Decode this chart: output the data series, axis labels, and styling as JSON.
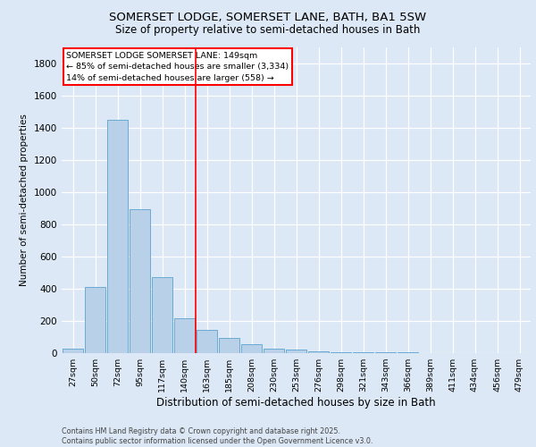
{
  "title_line1": "SOMERSET LODGE, SOMERSET LANE, BATH, BA1 5SW",
  "title_line2": "Size of property relative to semi-detached houses in Bath",
  "xlabel": "Distribution of semi-detached houses by size in Bath",
  "ylabel": "Number of semi-detached properties",
  "categories": [
    "27sqm",
    "50sqm",
    "72sqm",
    "95sqm",
    "117sqm",
    "140sqm",
    "163sqm",
    "185sqm",
    "208sqm",
    "230sqm",
    "253sqm",
    "276sqm",
    "298sqm",
    "321sqm",
    "343sqm",
    "366sqm",
    "389sqm",
    "411sqm",
    "434sqm",
    "456sqm",
    "479sqm"
  ],
  "values": [
    25,
    410,
    1450,
    895,
    470,
    215,
    145,
    95,
    55,
    28,
    20,
    12,
    8,
    6,
    5,
    3,
    2,
    2,
    1,
    1,
    1
  ],
  "bar_color": "#b8d0e8",
  "bar_edge_color": "#6aaad4",
  "vline_x": 5.5,
  "vline_color": "red",
  "annotation_title": "SOMERSET LODGE SOMERSET LANE: 149sqm",
  "annotation_line2": "← 85% of semi-detached houses are smaller (3,334)",
  "annotation_line3": "14% of semi-detached houses are larger (558) →",
  "ylim": [
    0,
    1900
  ],
  "yticks": [
    0,
    200,
    400,
    600,
    800,
    1000,
    1200,
    1400,
    1600,
    1800
  ],
  "footer": "Contains HM Land Registry data © Crown copyright and database right 2025.\nContains public sector information licensed under the Open Government Licence v3.0.",
  "bg_color": "#dce8f5",
  "fig_bg_color": "#dce8f5"
}
